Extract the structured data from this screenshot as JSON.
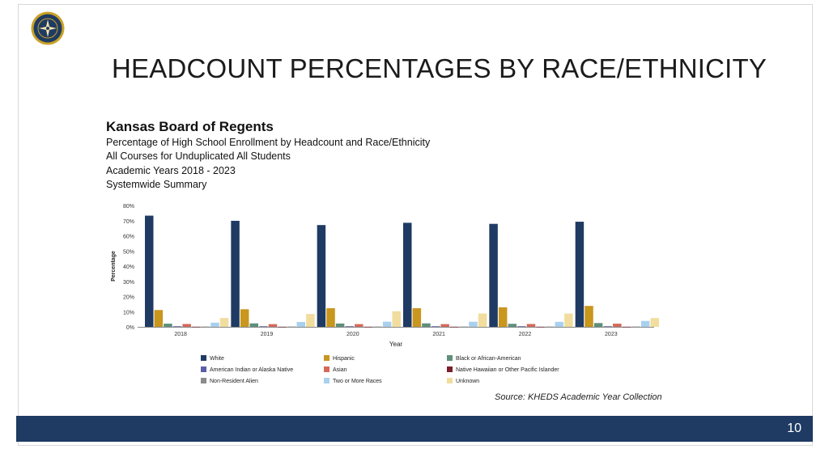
{
  "slide": {
    "title": "HEADCOUNT PERCENTAGES BY RACE/ETHNICITY",
    "page_number": "10",
    "source": "Source: KHEDS Academic Year Collection",
    "logo": "seal-icon"
  },
  "report": {
    "org": "Kansas Board of Regents",
    "lines": [
      "Percentage of High School Enrollment by Headcount and Race/Ethnicity",
      "All Courses for Unduplicated All Students",
      "Academic Years 2018 - 2023",
      "Systemwide Summary"
    ]
  },
  "colors": {
    "footer": "#1f3b63",
    "White": "#1f3b63",
    "Hispanic": "#c9961e",
    "Black or African-American": "#5f8f7b",
    "American Indian or Alaska Native": "#5b5ea6",
    "Asian": "#d46a5a",
    "Native Hawaiian or Other Pacific Islander": "#7a1f2b",
    "Non-Resident Alien": "#8c8c8c",
    "Two or More Races": "#a9d1ee",
    "Unknown": "#f1dd9e"
  },
  "chart_data": {
    "type": "bar",
    "xlabel": "Year",
    "ylabel": "Percentage",
    "ylim": [
      0,
      80
    ],
    "yticks": [
      "0%",
      "10%",
      "20%",
      "30%",
      "40%",
      "50%",
      "60%",
      "70%",
      "80%"
    ],
    "grid": false,
    "legend_position": "bottom",
    "categories": [
      "2018",
      "2019",
      "2020",
      "2021",
      "2022",
      "2023"
    ],
    "series": [
      {
        "name": "White",
        "values": [
          73.3,
          69.9,
          67.1,
          68.6,
          67.9,
          69.3
        ]
      },
      {
        "name": "Hispanic",
        "values": [
          11.1,
          11.6,
          12.3,
          12.3,
          12.9,
          13.8
        ]
      },
      {
        "name": "Black or African-American",
        "values": [
          2.1,
          2.3,
          2.2,
          2.3,
          2.0,
          2.5
        ]
      },
      {
        "name": "American Indian or Alaska Native",
        "values": [
          0.4,
          0.4,
          0.4,
          0.4,
          0.4,
          0.4
        ]
      },
      {
        "name": "Asian",
        "values": [
          1.9,
          1.8,
          1.8,
          1.8,
          1.9,
          2.1
        ]
      },
      {
        "name": "Native Hawaiian or Other Pacific Islander",
        "values": [
          0.1,
          0.1,
          0.1,
          0.1,
          0.1,
          0.1
        ]
      },
      {
        "name": "Non-Resident Alien",
        "values": [
          0.2,
          0.2,
          0.2,
          0.2,
          0.2,
          0.2
        ]
      },
      {
        "name": "Two or More Races",
        "values": [
          2.8,
          3.2,
          3.4,
          3.4,
          3.3,
          3.9
        ]
      },
      {
        "name": "Unknown",
        "values": [
          5.8,
          8.5,
          10.3,
          8.8,
          8.8,
          5.8
        ]
      }
    ]
  }
}
